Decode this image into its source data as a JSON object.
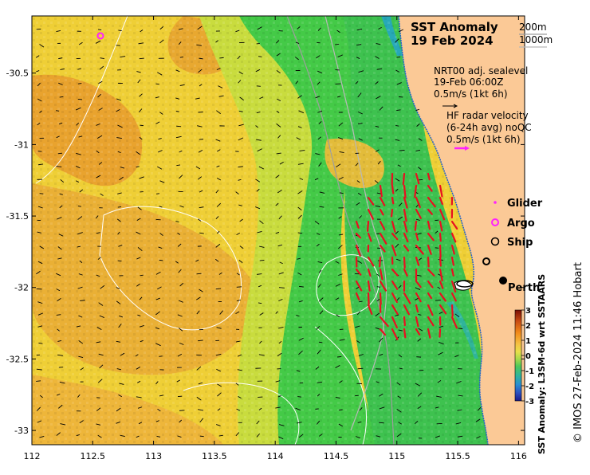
{
  "title": {
    "line1": "SST Anomaly",
    "line2": "19 Feb 2024"
  },
  "contours": {
    "c1": "200m",
    "c2": "1000m"
  },
  "sealevel": {
    "line1": "NRT00 adj. sealevel",
    "line2": "19-Feb 06:00Z",
    "line3": "0.5m/s (1kt 6h)"
  },
  "radar": {
    "line1": "HF radar velocity",
    "line2": "(6-24h avg) noQC",
    "line3": "0.5m/s (1kt 6h)"
  },
  "legend": {
    "glider": "Glider",
    "argo": "Argo",
    "ship": "Ship"
  },
  "city": "Perth",
  "colorbar": {
    "label": "SST Anomaly: L3SM-6d wrt SSTAARS",
    "ticks": [
      "3",
      "2",
      "1",
      "0",
      "-1",
      "-2",
      "-3"
    ],
    "colors": [
      "#7a0f06",
      "#c84a12",
      "#f28a1a",
      "#f5c445",
      "#e8e04a",
      "#a6d94a",
      "#4ec85a",
      "#2fb59a",
      "#2a8fd0",
      "#2c50c0",
      "#1c1a8a"
    ]
  },
  "credit": "© IMOS 27-Feb-2024 11:46 Hobart",
  "colors": {
    "land": "#fbc996",
    "ocean_warm": "#f0b830",
    "ocean_mid": "#d8dc3c",
    "ocean_cool": "#3fcf4a",
    "radar_arrow": "#e81020",
    "argo": "#ff20ff"
  },
  "map_data": {
    "lon_ticks": [
      "112",
      "112.5",
      "113",
      "113.5",
      "114",
      "114.5",
      "115",
      "115.5",
      "116"
    ],
    "lat_ticks": [
      "-30.5",
      "-31",
      "-31.5",
      "-32",
      "-32.5",
      "-33"
    ],
    "lon_range": [
      112,
      116.05
    ],
    "lat_range": [
      -30.1,
      -33.1
    ]
  }
}
